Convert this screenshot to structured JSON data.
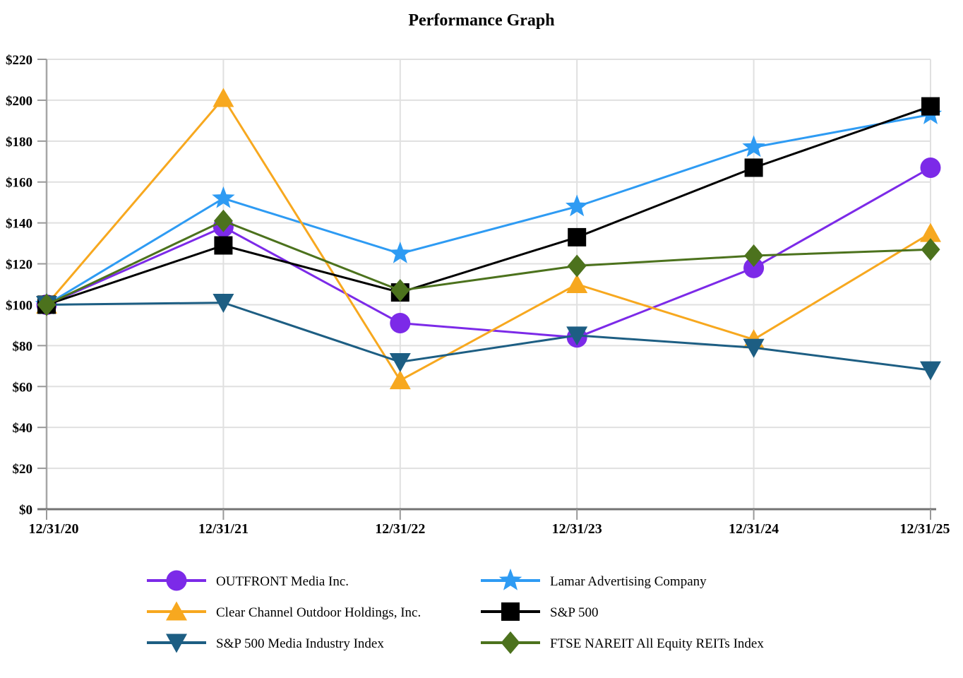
{
  "title": "Performance Graph",
  "chart_data": {
    "type": "line",
    "title": "Performance Graph",
    "categories": [
      "12/31/20",
      "12/31/21",
      "12/31/22",
      "12/31/23",
      "12/31/24",
      "12/31/25"
    ],
    "series": [
      {
        "name": "OUTFRONT Media Inc.",
        "marker": "circle",
        "color": "#7C2AE8",
        "values": [
          100,
          138,
          91,
          84,
          118,
          167
        ]
      },
      {
        "name": "Lamar Advertising Company",
        "marker": "star",
        "color": "#2E9BF3",
        "values": [
          100,
          152,
          125,
          148,
          177,
          193
        ]
      },
      {
        "name": "Clear Channel Outdoor Holdings, Inc.",
        "marker": "triangle-up",
        "color": "#F7A81F",
        "values": [
          100,
          201,
          63,
          110,
          83,
          135
        ]
      },
      {
        "name": "S&P 500",
        "marker": "square",
        "color": "#000000",
        "values": [
          100,
          129,
          106,
          133,
          167,
          197
        ]
      },
      {
        "name": "S&P 500 Media Industry Index",
        "marker": "triangle-down",
        "color": "#1D5E83",
        "values": [
          100,
          101,
          72,
          85,
          79,
          68
        ]
      },
      {
        "name": "FTSE NAREIT All Equity REITs Index",
        "marker": "diamond",
        "color": "#4C721D",
        "values": [
          100,
          141,
          107,
          119,
          124,
          127
        ]
      }
    ],
    "ylim": [
      0,
      220
    ],
    "ytick_step": 20,
    "ytick_labels": [
      "$0",
      "$20",
      "$40",
      "$60",
      "$80",
      "$100",
      "$120",
      "$140",
      "$160",
      "$180",
      "$200",
      "$220"
    ],
    "grid": true,
    "legend_position": "bottom",
    "legend_columns": [
      [
        0,
        2,
        4
      ],
      [
        1,
        3,
        5
      ]
    ]
  },
  "colors": {
    "gridline": "#E0E0E0",
    "y_axis": "#A6A6A6",
    "x_axis": "#737373",
    "tick": "#999999",
    "text": "#000000"
  }
}
